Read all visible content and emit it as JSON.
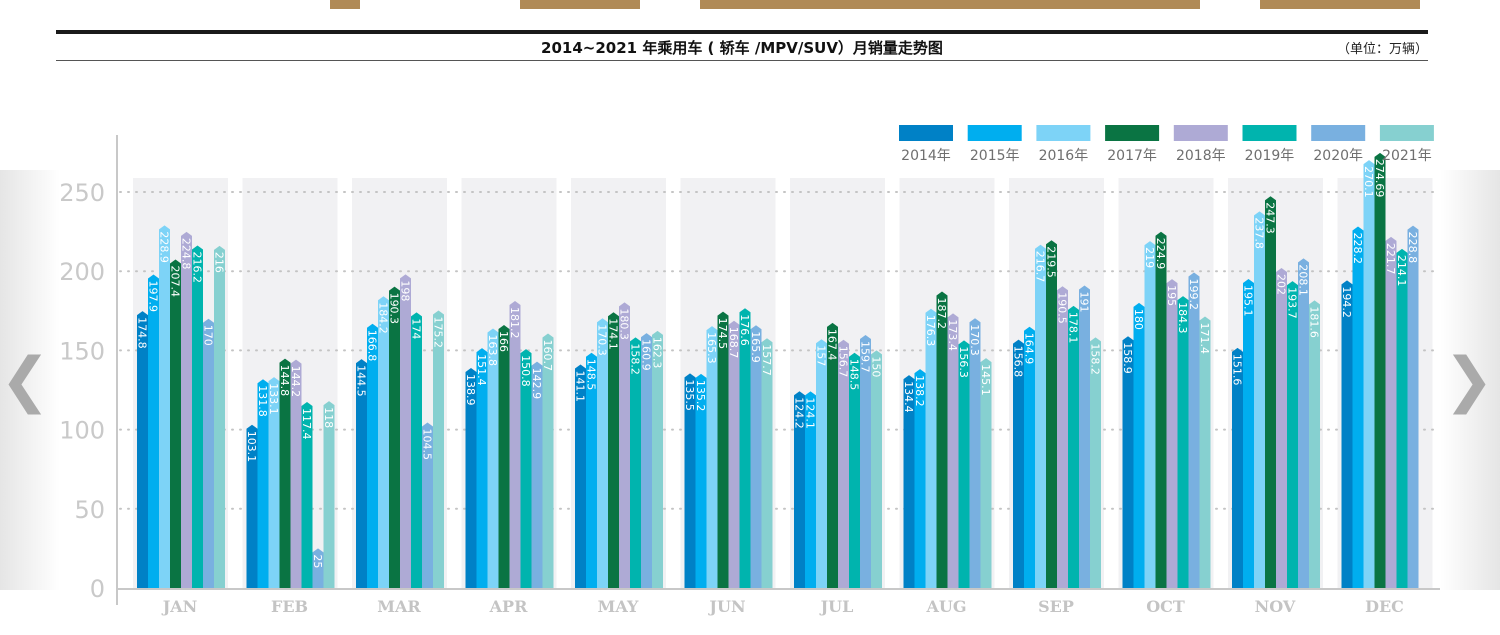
{
  "header": {
    "title": "2014~2021 年乘用车 ( 轿车 /MPV/SUV）月销量走势图",
    "unit": "（单位：万辆）"
  },
  "nav": {
    "prev_icon": "chevron-left-icon",
    "next_icon": "chevron-right-icon"
  },
  "chart_data": {
    "type": "bar",
    "title": "2014~2021 年乘用车 ( 轿车 /MPV/SUV）月销量走势图",
    "ylabel": "",
    "unit": "（单位：万辆）",
    "ylim": [
      0,
      250
    ],
    "yticks": [
      "0",
      "50",
      "100",
      "150",
      "200",
      "250"
    ],
    "grid": true,
    "legend": "top-right",
    "categories": [
      "JAN",
      "FEB",
      "MAR",
      "APR",
      "MAY",
      "JUN",
      "JUL",
      "AUG",
      "SEP",
      "OCT",
      "NOV",
      "DEC"
    ],
    "series": [
      {
        "name": "2014年",
        "color": "#0081c6",
        "values": [
          174.8,
          103.1,
          144.5,
          138.9,
          141.1,
          135.5,
          124.2,
          134.4,
          156.8,
          158.9,
          151.6,
          194.2
        ]
      },
      {
        "name": "2015年",
        "color": "#00aeef",
        "values": [
          197.9,
          131.8,
          166.8,
          151.4,
          148.5,
          135.2,
          124.1,
          138.2,
          164.9,
          180.0,
          195.1,
          228.2
        ]
      },
      {
        "name": "2016年",
        "color": "#7dd3f7",
        "values": [
          228.9,
          133.1,
          184.2,
          163.8,
          170.3,
          165.3,
          157.0,
          176.3,
          216.7,
          219.0,
          237.8,
          270.1
        ]
      },
      {
        "name": "2017年",
        "color": "#0a7443",
        "values": [
          207.4,
          144.8,
          190.3,
          166.0,
          174.1,
          174.5,
          167.4,
          187.2,
          219.5,
          224.9,
          247.3,
          274.69
        ]
      },
      {
        "name": "2018年",
        "color": "#aeaad5",
        "values": [
          224.8,
          144.2,
          198.0,
          181.2,
          180.3,
          168.7,
          156.7,
          173.4,
          190.5,
          195.0,
          202.0,
          221.7
        ]
      },
      {
        "name": "2019年",
        "color": "#00b4ae",
        "values": [
          216.2,
          117.4,
          174.0,
          150.8,
          158.2,
          176.6,
          148.5,
          156.3,
          178.1,
          184.3,
          193.7,
          214.1
        ]
      },
      {
        "name": "2020年",
        "color": "#79b0e0",
        "values": [
          170.0,
          25.0,
          104.5,
          142.9,
          160.9,
          165.9,
          159.7,
          170.3,
          191.0,
          199.2,
          208.1,
          228.8
        ]
      },
      {
        "name": "2021年",
        "color": "#86d0d0",
        "values": [
          216.0,
          118.0,
          175.2,
          160.7,
          162.3,
          157.7,
          150.0,
          145.1,
          158.2,
          171.4,
          181.6,
          null
        ]
      }
    ]
  }
}
